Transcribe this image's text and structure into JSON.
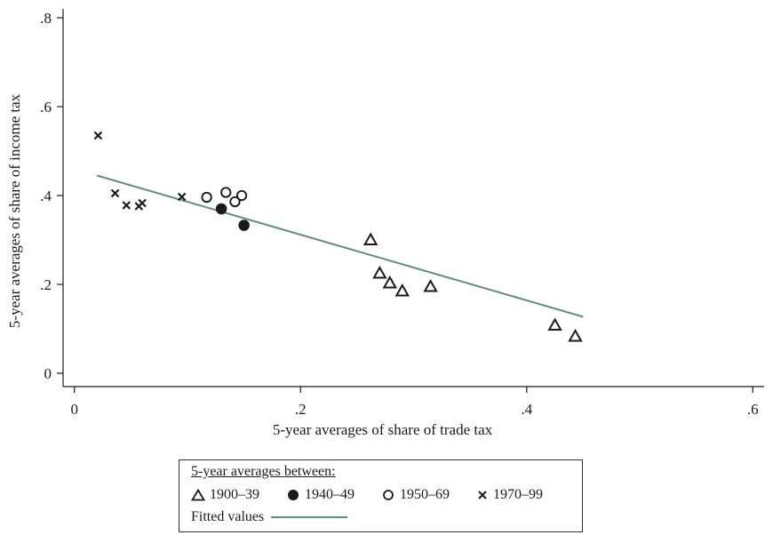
{
  "chart_data": {
    "type": "scatter",
    "xlabel": "5-year averages of share of trade tax",
    "ylabel": "5-year averages of share of income tax",
    "xlim": [
      -0.01,
      0.61
    ],
    "ylim": [
      -0.03,
      0.82
    ],
    "x_ticks": [
      0,
      0.2,
      0.4,
      0.6
    ],
    "x_tick_labels": [
      "0",
      ".2",
      ".4",
      ".6"
    ],
    "y_ticks": [
      0,
      0.2,
      0.4,
      0.6,
      0.8
    ],
    "y_tick_labels": [
      "0",
      ".2",
      ".4",
      ".6",
      ".8"
    ],
    "colors": {
      "fit_line": "#5f8f77",
      "markers": "#1a1a1a"
    },
    "series": [
      {
        "name": "1900–39",
        "marker": "triangle",
        "points": [
          [
            0.262,
            0.3
          ],
          [
            0.27,
            0.225
          ],
          [
            0.279,
            0.203
          ],
          [
            0.29,
            0.185
          ],
          [
            0.315,
            0.195
          ],
          [
            0.425,
            0.108
          ],
          [
            0.443,
            0.083
          ]
        ]
      },
      {
        "name": "1940–49",
        "marker": "filled-circle",
        "points": [
          [
            0.13,
            0.37
          ],
          [
            0.15,
            0.333
          ]
        ]
      },
      {
        "name": "1950–69",
        "marker": "hollow-circle",
        "points": [
          [
            0.117,
            0.396
          ],
          [
            0.134,
            0.407
          ],
          [
            0.142,
            0.386
          ],
          [
            0.148,
            0.4
          ]
        ]
      },
      {
        "name": "1970–99",
        "marker": "x",
        "points": [
          [
            0.021,
            0.535
          ],
          [
            0.036,
            0.405
          ],
          [
            0.046,
            0.378
          ],
          [
            0.057,
            0.376
          ],
          [
            0.06,
            0.383
          ],
          [
            0.095,
            0.397
          ]
        ]
      }
    ],
    "fitted": {
      "name": "Fitted values",
      "points": [
        [
          0.02,
          0.445
        ],
        [
          0.45,
          0.127
        ]
      ]
    }
  },
  "legend": {
    "title": "5-year averages between:",
    "entries": [
      "1900–39",
      "1940–49",
      "1950–69",
      "1970–99"
    ],
    "fit_label": "Fitted values"
  }
}
